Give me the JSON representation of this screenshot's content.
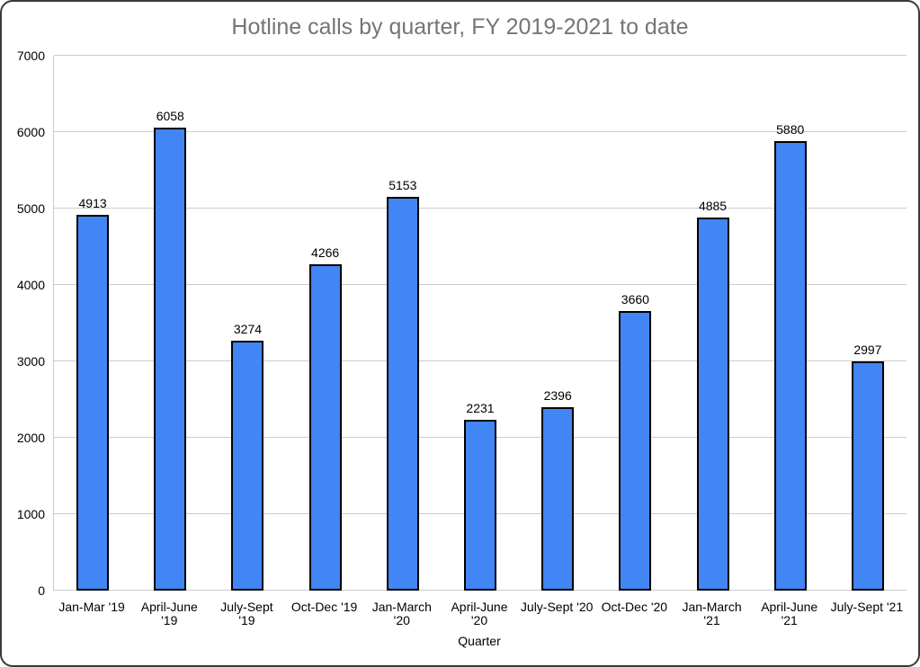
{
  "window": {
    "background": "#ffffff",
    "border_color": "#3a3a3a"
  },
  "chart_data": {
    "type": "bar",
    "title": "Hotline calls by quarter, FY 2019-2021 to date",
    "xlabel": "Quarter",
    "ylabel": "",
    "categories": [
      "Jan-Mar '19",
      "April-June '19",
      "July-Sept '19",
      "Oct-Dec '19",
      "Jan-March '20",
      "April-June '20",
      "July-Sept '20",
      "Oct-Dec '20",
      "Jan-March '21",
      "April-June '21",
      "July-Sept '21"
    ],
    "tick_labels": [
      "Jan-Mar '19",
      "April-June\n'19",
      "July-Sept\n'19",
      "Oct-Dec '19",
      "Jan-March\n'20",
      "April-June\n'20",
      "July-Sept '20",
      "Oct-Dec '20",
      "Jan-March\n'21",
      "April-June\n'21",
      "July-Sept '21"
    ],
    "values": [
      4913,
      6058,
      3274,
      4266,
      5153,
      2231,
      2396,
      3660,
      4885,
      5880,
      2997
    ],
    "y_ticks": [
      0,
      1000,
      2000,
      3000,
      4000,
      5000,
      6000,
      7000
    ],
    "ylim": [
      0,
      7000
    ],
    "ytick_step": 1000,
    "grid": true,
    "legend": "none",
    "data_labels": true,
    "bar_fill": "#4285f4",
    "bar_border": "#000000",
    "grid_color": "#cccccc",
    "title_color": "#757575"
  }
}
